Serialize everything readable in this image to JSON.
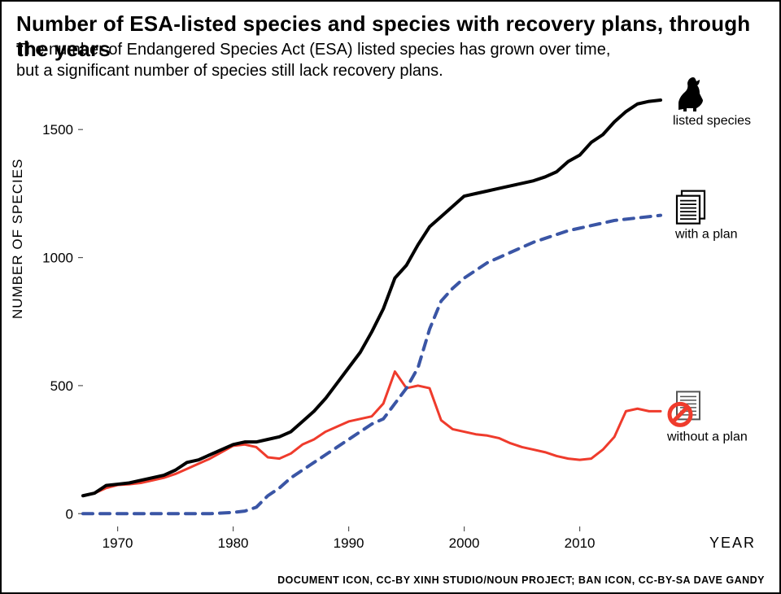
{
  "title": "Number of ESA-listed species and species with recovery plans, through the years",
  "subtitle_line1": "The number of Endangered Species Act (ESA) listed species has grown over time,",
  "subtitle_line2": "but a significant number of species still lack recovery plans.",
  "ylabel": "NUMBER OF SPECIES",
  "xlabel": "YEAR",
  "credit": "DOCUMENT ICON, CC-BY XINH STUDIO/NOUN PROJECT; BAN ICON, CC-BY-SA DAVE GANDY",
  "chart": {
    "type": "line",
    "background_color": "#ffffff",
    "xlim": [
      1967,
      2017
    ],
    "ylim": [
      -50,
      1650
    ],
    "xticks": [
      1970,
      1980,
      1990,
      2000,
      2010
    ],
    "yticks": [
      0,
      500,
      1000,
      1500
    ],
    "tick_fontsize": 17,
    "label_fontsize": 17,
    "tick_color": "#555555",
    "tick_length": 6,
    "series": {
      "listed": {
        "label": "listed species",
        "color": "#000000",
        "width": 4,
        "dash": "none",
        "x": [
          1967,
          1968,
          1969,
          1970,
          1971,
          1972,
          1973,
          1974,
          1975,
          1976,
          1977,
          1978,
          1979,
          1980,
          1981,
          1982,
          1983,
          1984,
          1985,
          1986,
          1987,
          1988,
          1989,
          1990,
          1991,
          1992,
          1993,
          1994,
          1995,
          1996,
          1997,
          1998,
          1999,
          2000,
          2001,
          2002,
          2003,
          2004,
          2005,
          2006,
          2007,
          2008,
          2009,
          2010,
          2011,
          2012,
          2013,
          2014,
          2015,
          2016,
          2017
        ],
        "y": [
          70,
          80,
          110,
          115,
          120,
          130,
          140,
          150,
          170,
          200,
          210,
          230,
          250,
          270,
          280,
          280,
          290,
          300,
          320,
          360,
          400,
          450,
          510,
          570,
          630,
          710,
          800,
          920,
          970,
          1050,
          1120,
          1160,
          1200,
          1240,
          1250,
          1260,
          1270,
          1280,
          1290,
          1300,
          1315,
          1335,
          1375,
          1400,
          1450,
          1480,
          1530,
          1570,
          1600,
          1610,
          1615
        ]
      },
      "with_plan": {
        "label": "with a plan",
        "color": "#3a55a5",
        "width": 4,
        "dash": "12,9",
        "x": [
          1967,
          1970,
          1975,
          1978,
          1980,
          1981,
          1982,
          1983,
          1984,
          1985,
          1986,
          1987,
          1988,
          1989,
          1990,
          1991,
          1992,
          1993,
          1994,
          1995,
          1996,
          1997,
          1998,
          1999,
          2000,
          2001,
          2002,
          2003,
          2004,
          2005,
          2006,
          2007,
          2008,
          2009,
          2010,
          2011,
          2012,
          2013,
          2014,
          2015,
          2016,
          2017
        ],
        "y": [
          0,
          0,
          0,
          0,
          5,
          10,
          25,
          70,
          100,
          140,
          170,
          200,
          230,
          260,
          290,
          320,
          350,
          370,
          430,
          490,
          570,
          720,
          830,
          880,
          920,
          950,
          980,
          1000,
          1020,
          1040,
          1060,
          1075,
          1090,
          1105,
          1115,
          1125,
          1135,
          1145,
          1150,
          1155,
          1160,
          1165
        ]
      },
      "without_plan": {
        "label": "without a plan",
        "color": "#ef3b2c",
        "width": 3,
        "dash": "none",
        "x": [
          1967,
          1968,
          1969,
          1970,
          1971,
          1972,
          1973,
          1974,
          1975,
          1976,
          1977,
          1978,
          1979,
          1980,
          1981,
          1982,
          1983,
          1984,
          1985,
          1986,
          1987,
          1988,
          1989,
          1990,
          1991,
          1992,
          1993,
          1994,
          1995,
          1996,
          1997,
          1998,
          1999,
          2000,
          2001,
          2002,
          2003,
          2004,
          2005,
          2006,
          2007,
          2008,
          2009,
          2010,
          2011,
          2012,
          2013,
          2014,
          2015,
          2016,
          2017
        ],
        "y": [
          70,
          80,
          100,
          112,
          115,
          120,
          130,
          140,
          155,
          175,
          195,
          215,
          240,
          265,
          270,
          260,
          220,
          215,
          235,
          270,
          290,
          320,
          340,
          360,
          370,
          380,
          430,
          555,
          490,
          500,
          490,
          365,
          330,
          320,
          310,
          305,
          295,
          275,
          260,
          250,
          240,
          225,
          215,
          210,
          215,
          250,
          300,
          400,
          410,
          400,
          400
        ]
      }
    },
    "legend": {
      "listed_icon": "wolf",
      "with_plan_icon": "document",
      "without_plan_icon": "document-ban",
      "ban_color": "#ef3b2c"
    }
  }
}
